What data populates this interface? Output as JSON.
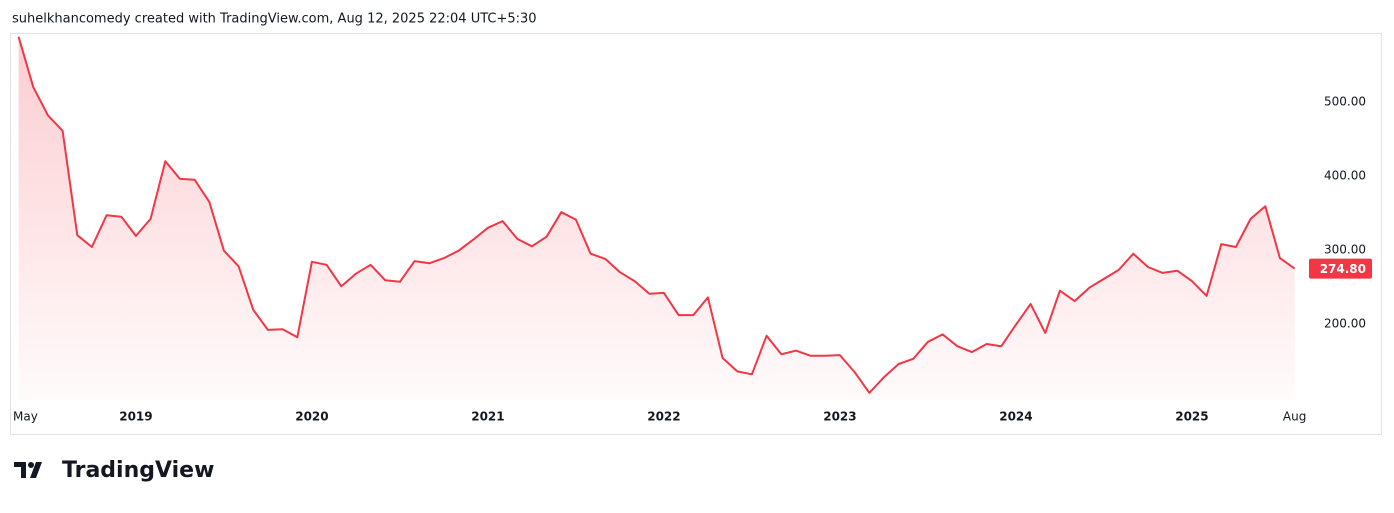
{
  "header": {
    "caption": "suhelkhancomedy created with TradingView.com, Aug 12, 2025 22:04 UTC+5:30"
  },
  "footer": {
    "brand": "TradingView"
  },
  "chart_data": {
    "type": "area",
    "color": "#f23645",
    "categories": [
      "May",
      null,
      null,
      null,
      null,
      null,
      null,
      null,
      "2019",
      null,
      null,
      null,
      null,
      null,
      null,
      null,
      null,
      null,
      null,
      null,
      "2020",
      null,
      null,
      null,
      null,
      null,
      null,
      null,
      null,
      null,
      null,
      null,
      "2021",
      null,
      null,
      null,
      null,
      null,
      null,
      null,
      null,
      null,
      null,
      null,
      "2022",
      null,
      null,
      null,
      null,
      null,
      null,
      null,
      null,
      null,
      null,
      null,
      "2023",
      null,
      null,
      null,
      null,
      null,
      null,
      null,
      null,
      null,
      null,
      null,
      "2024",
      null,
      null,
      null,
      null,
      null,
      null,
      null,
      null,
      null,
      null,
      null,
      "2025",
      null,
      null,
      null,
      null,
      null,
      null,
      "Aug"
    ],
    "values": [
      588,
      520,
      482,
      461,
      320,
      304,
      347,
      345,
      319,
      342,
      420,
      396,
      395,
      365,
      299,
      278,
      219,
      192,
      193,
      182,
      284,
      280,
      251,
      268,
      280,
      259,
      257,
      285,
      282,
      289,
      299,
      314,
      330,
      339,
      315,
      305,
      318,
      351,
      341,
      295,
      288,
      270,
      258,
      241,
      242,
      212,
      212,
      236,
      154,
      136,
      132,
      184,
      159,
      164,
      157,
      157,
      158,
      135,
      107,
      128,
      146,
      153,
      176,
      186,
      170,
      162,
      173,
      170,
      199,
      227,
      188,
      245,
      231,
      249,
      261,
      273,
      295,
      277,
      269,
      272,
      258,
      238,
      308,
      304,
      342,
      359,
      289,
      274.8
    ],
    "value_labels": [
      null,
      null,
      null,
      null,
      null,
      null,
      null,
      null,
      null,
      null,
      null,
      null,
      null,
      null,
      null,
      null,
      null,
      null,
      null,
      null,
      null,
      null,
      null,
      null,
      null,
      null,
      null,
      null,
      null,
      null,
      null,
      null,
      null,
      null,
      null,
      null,
      null,
      null,
      null,
      null,
      null,
      null,
      null,
      null,
      null,
      null,
      null,
      null,
      null,
      null,
      null,
      null,
      null,
      null,
      null,
      null,
      null,
      null,
      null,
      null,
      null,
      null,
      null,
      null,
      null,
      null,
      null,
      null,
      null,
      null,
      null,
      null,
      null,
      null,
      null,
      null,
      null,
      null,
      null,
      null,
      null,
      null,
      null,
      null,
      null,
      null,
      null,
      "274.80"
    ],
    "ylim": [
      97.3,
      593.2
    ],
    "yticks": [
      {
        "value": 200,
        "label": "200.00"
      },
      {
        "value": 300,
        "label": "300.00"
      },
      {
        "value": 400,
        "label": "400.00"
      },
      {
        "value": 500,
        "label": "500.00"
      }
    ],
    "grid": false
  }
}
